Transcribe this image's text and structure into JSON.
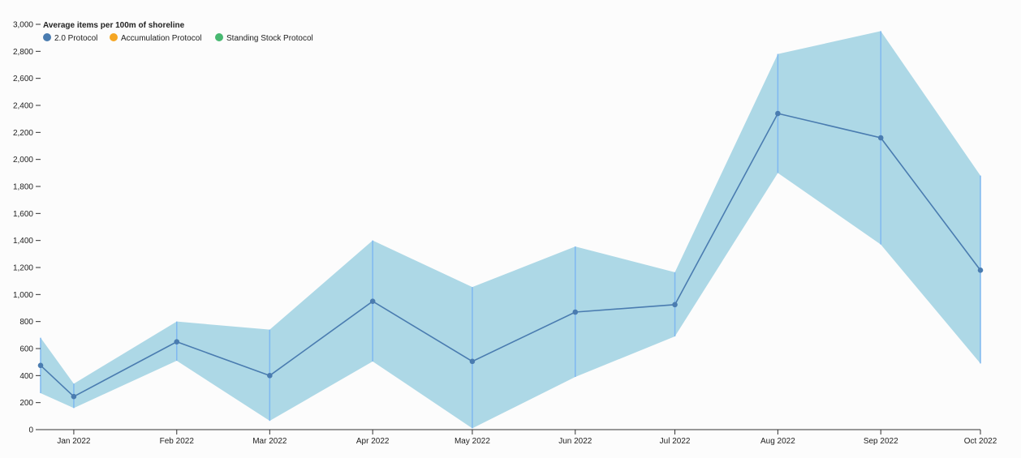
{
  "chart_data": {
    "type": "line",
    "ylabel": "Average items per 100m of shoreline",
    "ylim": [
      0,
      3000
    ],
    "y_ticks": [
      0,
      200,
      400,
      600,
      800,
      1000,
      1200,
      1400,
      1600,
      1800,
      2000,
      2200,
      2400,
      2600,
      2800,
      3000
    ],
    "y_tick_labels": [
      "0",
      "200",
      "400",
      "600",
      "800",
      "1,000",
      "1,200",
      "1,400",
      "1,600",
      "1,800",
      "2,000",
      "2,200",
      "2,400",
      "2,600",
      "2,800",
      "3,000"
    ],
    "x": [
      "2021-12-22",
      "2022-01-01",
      "2022-02-01",
      "2022-03-01",
      "2022-04-01",
      "2022-05-01",
      "2022-06-01",
      "2022-07-01",
      "2022-08-01",
      "2022-09-01",
      "2022-10-01"
    ],
    "xlim": [
      "2021-12-22",
      "2022-10-01"
    ],
    "x_ticks": [
      "2022-01-01",
      "2022-02-01",
      "2022-03-01",
      "2022-04-01",
      "2022-05-01",
      "2022-06-01",
      "2022-07-01",
      "2022-08-01",
      "2022-09-01",
      "2022-10-01"
    ],
    "x_tick_labels": [
      "Jan 2022",
      "Feb 2022",
      "Mar 2022",
      "Apr 2022",
      "May 2022",
      "Jun 2022",
      "Jul 2022",
      "Aug 2022",
      "Sep 2022",
      "Oct 2022"
    ],
    "grid": false,
    "legend_position": "top-left",
    "legend": [
      {
        "name": "2.0 Protocol",
        "color": "#4a7cb0"
      },
      {
        "name": "Accumulation Protocol",
        "color": "#f5a623"
      },
      {
        "name": "Standing Stock Protocol",
        "color": "#48b871"
      }
    ],
    "series": [
      {
        "name": "2.0 Protocol",
        "color": "#4a7cb0",
        "band_color": "#add8e6",
        "error_bar_color": "#7fb8f0",
        "values": [
          475,
          245,
          650,
          400,
          950,
          505,
          870,
          925,
          2340,
          2160,
          1180
        ],
        "lower": [
          270,
          160,
          510,
          65,
          505,
          10,
          390,
          690,
          1900,
          1370,
          490
        ],
        "upper": [
          680,
          340,
          800,
          740,
          1400,
          1055,
          1355,
          1165,
          2780,
          2950,
          1880
        ]
      }
    ]
  }
}
